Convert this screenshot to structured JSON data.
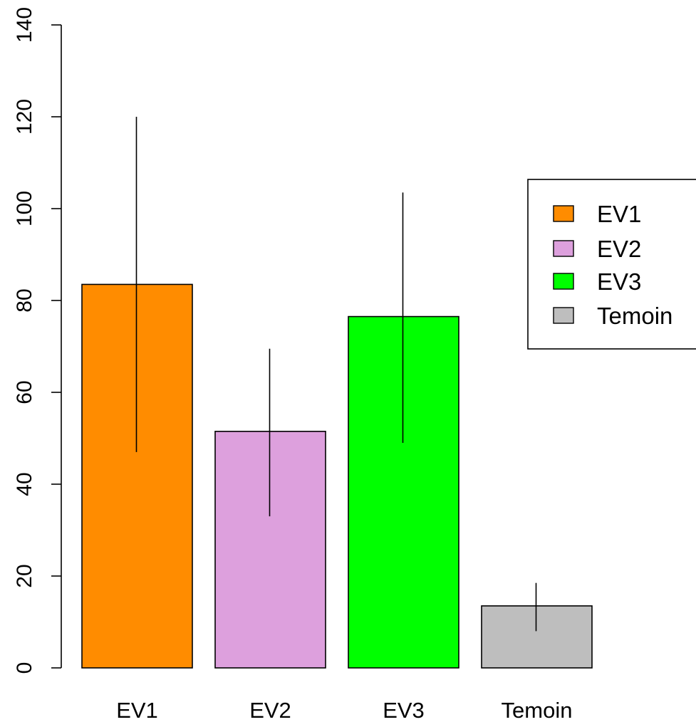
{
  "chart_data": {
    "type": "bar",
    "title": "",
    "xlabel": "",
    "ylabel": "",
    "categories": [
      "EV1",
      "EV2",
      "EV3",
      "Temoin"
    ],
    "values": [
      83.5,
      51.5,
      76.5,
      13.5
    ],
    "error_bars": [
      {
        "low": 47,
        "high": 120
      },
      {
        "low": 33,
        "high": 69.5
      },
      {
        "low": 49,
        "high": 103.5
      },
      {
        "low": 8,
        "high": 18.5
      }
    ],
    "colors": [
      "#ff8c00",
      "#dda0dd",
      "#00ff00",
      "#bebebe"
    ],
    "ylim": [
      0,
      140
    ],
    "yticks": [
      "0",
      "20",
      "40",
      "60",
      "80",
      "100",
      "120",
      "140"
    ],
    "grid": false,
    "legend": {
      "position": "right",
      "entries": [
        {
          "label": "EV1",
          "color": "#ff8c00"
        },
        {
          "label": "EV2",
          "color": "#dda0dd"
        },
        {
          "label": "EV3",
          "color": "#00ff00"
        },
        {
          "label": "Temoin",
          "color": "#bebebe"
        }
      ]
    }
  }
}
